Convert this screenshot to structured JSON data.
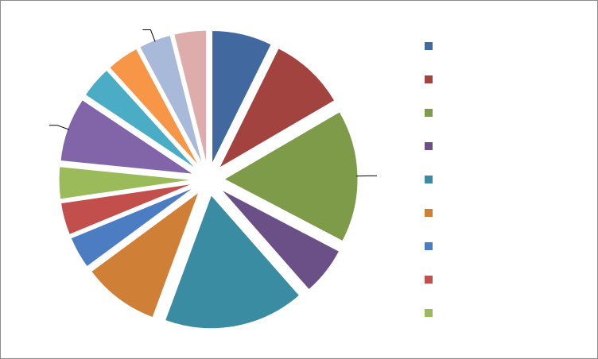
{
  "chart_data": {
    "type": "pie",
    "exploded": true,
    "start_angle_deg": 0,
    "direction": "clockwise",
    "values": [
      7.5,
      9.5,
      16.5,
      6,
      17.5,
      9.5,
      4,
      4,
      4,
      8,
      4,
      4,
      4,
      4
    ],
    "colors": [
      "#4169a0",
      "#a34340",
      "#7d9b48",
      "#6b5088",
      "#3a8ca3",
      "#d07f36",
      "#4c7dc2",
      "#c24f4c",
      "#9bba59",
      "#8265a8",
      "#4aacc5",
      "#f79646",
      "#a9b9d9",
      "#deacab"
    ],
    "legend": {
      "position": "right",
      "swatch_colors": [
        "#4169a0",
        "#a34340",
        "#7d9b48",
        "#6b5088",
        "#3a8ca3",
        "#d07f36",
        "#4c7dc2",
        "#c24f4c",
        "#9bba59"
      ],
      "labels": [
        "",
        "",
        "",
        "",
        "",
        "",
        "",
        "",
        ""
      ]
    },
    "leader_lines_on_slices": [
      3,
      10,
      13
    ]
  }
}
